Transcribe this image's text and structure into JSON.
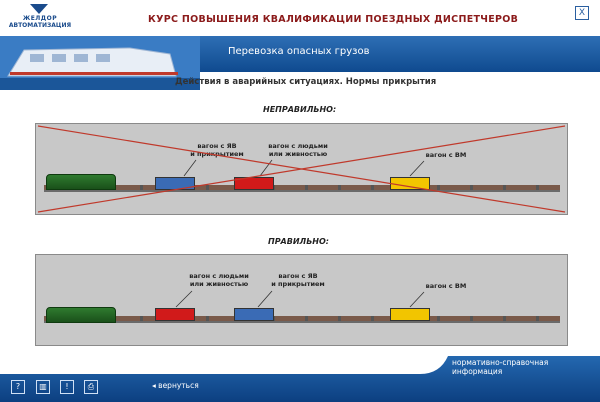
{
  "header": {
    "logo_line1": "ЖЕЛДОР",
    "logo_line2": "АВТОМАТИЗАЦИЯ",
    "course_title": "КУРС ПОВЫШЕНИЯ КВАЛИФИКАЦИИ ПОЕЗДНЫХ ДИСПЕТЧЕРОВ",
    "close_label": "X"
  },
  "banner": {
    "section_title": "Перевозка опасных грузов"
  },
  "subtitle": "Действия в аварийных ситуациях. Нормы прикрытия",
  "wrong": {
    "heading": "НЕПРАВИЛЬНО:",
    "label_explosive": [
      "вагон с ЯВ",
      "и прикрытием"
    ],
    "label_people": [
      "вагон с людьми",
      "или живностью"
    ],
    "label_vm": "вагон с ВМ"
  },
  "right": {
    "heading": "ПРАВИЛЬНО:",
    "label_people": [
      "вагон с людьми",
      "или живностью"
    ],
    "label_explosive": [
      "вагон с ЯВ",
      "и прикрытием"
    ],
    "label_vm": "вагон с ВМ"
  },
  "footer": {
    "reference_info": "нормативно-справочная информация",
    "back_label": "◂ вернуться",
    "buttons": [
      "?",
      "▥",
      "!",
      "⎙"
    ]
  },
  "colors": {
    "blue_car": "#3a6bb5",
    "red_car": "#d11a1a",
    "yellow_car": "#f2c500",
    "loco": "#2f7a2f",
    "cross": "#c0392b"
  }
}
